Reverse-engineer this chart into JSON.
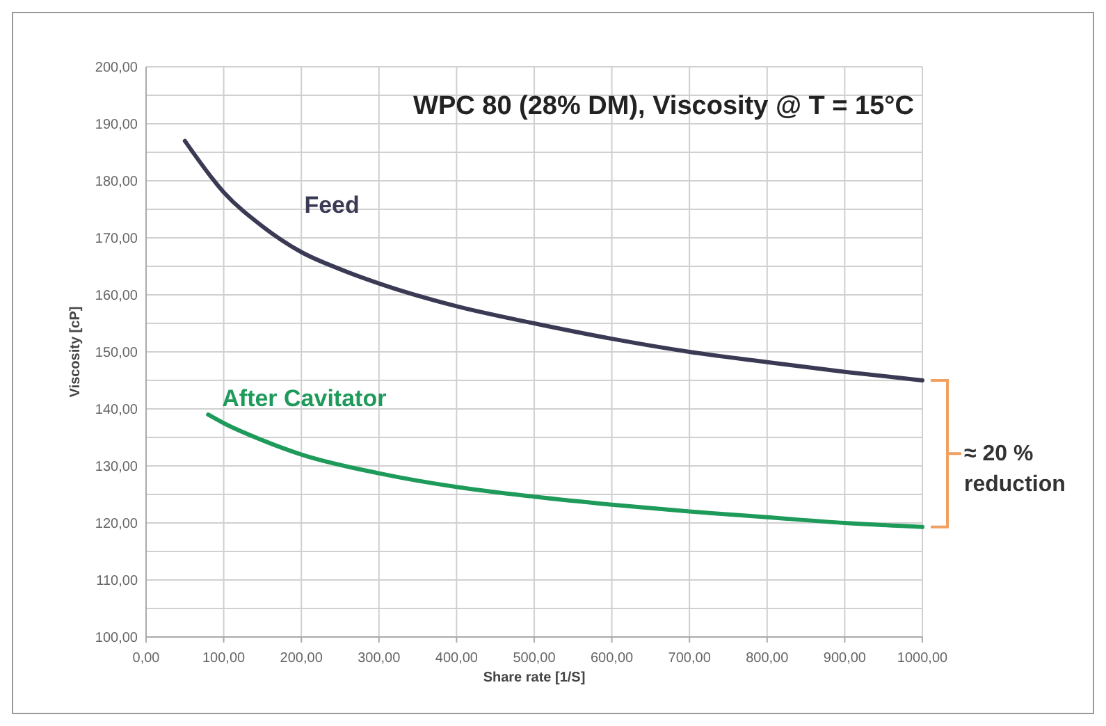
{
  "chart_data": {
    "type": "line",
    "title": "WPC 80 (28% DM), Viscosity @ T = 15°C",
    "xlabel": "Share rate  [1/S]",
    "ylabel": "Viscosity  [cP]",
    "grid": true,
    "marker": "none",
    "line_style": "solid",
    "xlim": [
      0,
      1000
    ],
    "xticks": [
      {
        "value": 0,
        "label": "0,00"
      },
      {
        "value": 100,
        "label": "100,00"
      },
      {
        "value": 200,
        "label": "200,00"
      },
      {
        "value": 300,
        "label": "300,00"
      },
      {
        "value": 400,
        "label": "400,00"
      },
      {
        "value": 500,
        "label": "500,00"
      },
      {
        "value": 600,
        "label": "600,00"
      },
      {
        "value": 700,
        "label": "700,00"
      },
      {
        "value": 800,
        "label": "800,00"
      },
      {
        "value": 900,
        "label": "900,00"
      },
      {
        "value": 1000,
        "label": "1000,00"
      }
    ],
    "ylim": [
      100,
      200
    ],
    "yticks": [
      {
        "value": 100,
        "label": "100,00"
      },
      {
        "value": 105,
        "label": null
      },
      {
        "value": 110,
        "label": "110,00"
      },
      {
        "value": 115,
        "label": null
      },
      {
        "value": 120,
        "label": "120,00"
      },
      {
        "value": 125,
        "label": null
      },
      {
        "value": 130,
        "label": "130,00"
      },
      {
        "value": 135,
        "label": null
      },
      {
        "value": 140,
        "label": "140,00"
      },
      {
        "value": 145,
        "label": null
      },
      {
        "value": 150,
        "label": "150,00"
      },
      {
        "value": 155,
        "label": null
      },
      {
        "value": 160,
        "label": "160,00"
      },
      {
        "value": 165,
        "label": null
      },
      {
        "value": 170,
        "label": "170,00"
      },
      {
        "value": 175,
        "label": null
      },
      {
        "value": 180,
        "label": "180,00"
      },
      {
        "value": 185,
        "label": null
      },
      {
        "value": 190,
        "label": "190,00"
      },
      {
        "value": 195,
        "label": null
      },
      {
        "value": 200,
        "label": "200,00"
      }
    ],
    "series": [
      {
        "name": "Feed",
        "color": "#3a3a55",
        "x": [
          50,
          100,
          150,
          200,
          250,
          300,
          400,
          500,
          600,
          700,
          800,
          900,
          1000
        ],
        "values": [
          187,
          178,
          172,
          167.5,
          164.5,
          162,
          158,
          155,
          152.3,
          150,
          148.2,
          146.5,
          145
        ]
      },
      {
        "name": "After Cavitator",
        "color": "#1e9a5a",
        "x": [
          80,
          100,
          150,
          200,
          300,
          400,
          500,
          600,
          700,
          800,
          900,
          1000
        ],
        "values": [
          139,
          137.5,
          134.5,
          132,
          128.7,
          126.3,
          124.6,
          123.2,
          122,
          121,
          120,
          119.3
        ]
      }
    ],
    "annotations": [
      "≈ 20 %\nreduction"
    ]
  }
}
